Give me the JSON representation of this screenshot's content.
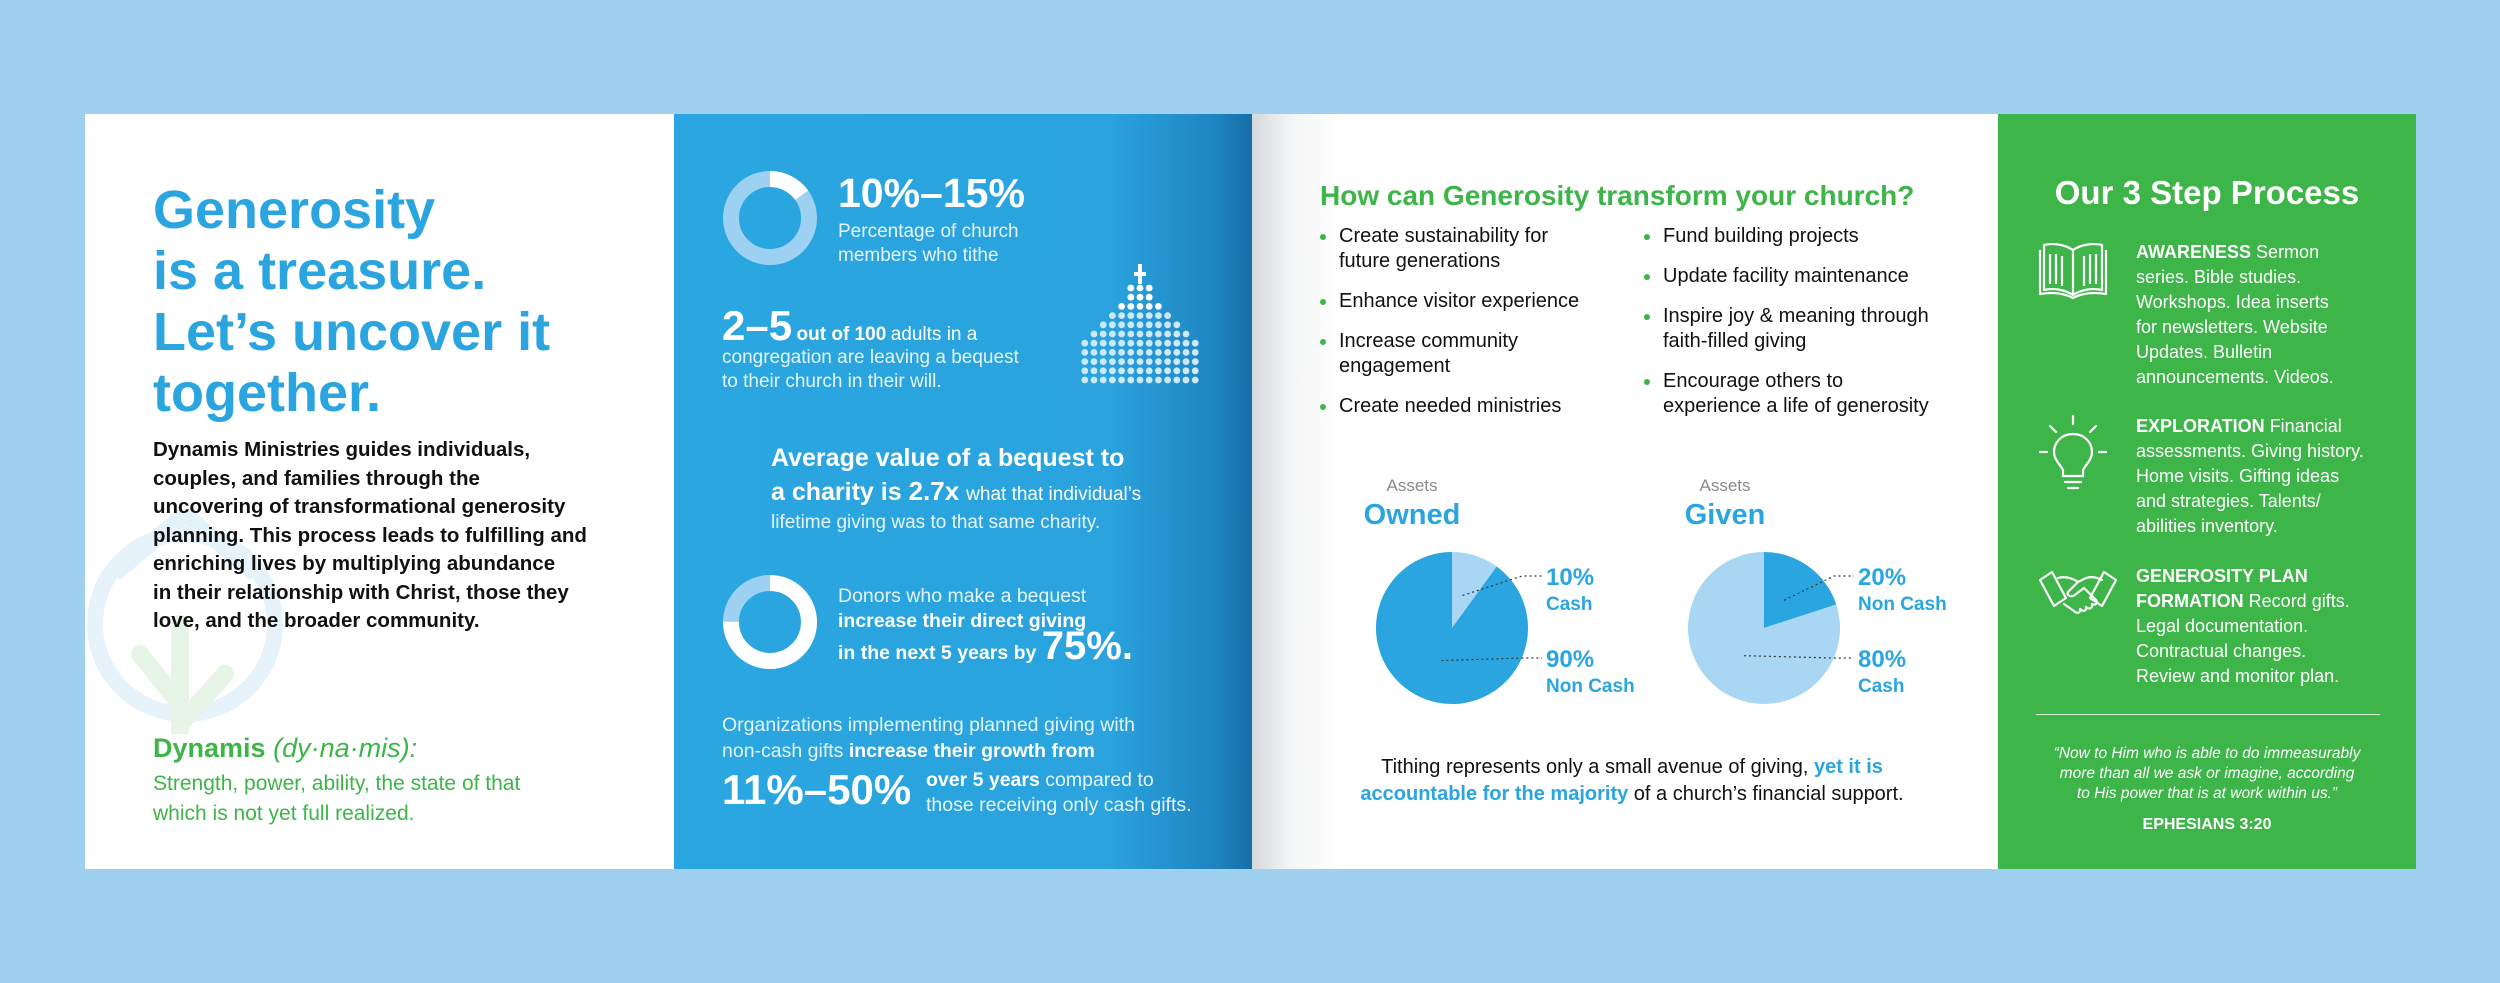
{
  "panel1": {
    "headline": [
      "Generosity",
      "is a treasure.",
      "Let’s uncover it",
      "together."
    ],
    "intro": [
      "Dynamis Ministries guides individuals,",
      "couples, and families through the",
      "uncovering of transformational generosity",
      "planning. This process leads to fulfilling and",
      "enriching lives by multiplying abundance",
      "in their relationship with Christ, those they",
      "love, and the broader community."
    ],
    "dynamis_word": "Dynamis",
    "dynamis_pron": "(dy·na·mis):",
    "dynamis_def": [
      "Strength, power, ability, the state of that",
      "which is not yet full realized."
    ]
  },
  "panel2": {
    "stat1_big": "10%–15%",
    "stat1_desc": [
      "Percentage of church",
      "members who tithe"
    ],
    "stat1_fraction": 0.15,
    "stat2_big": "2–5",
    "stat2_bold": "out of 100",
    "stat2_rest": "adults in a",
    "stat2_lines": [
      "congregation are leaving a bequest",
      "to their church in their will."
    ],
    "stat3_line1": "Average value of a bequest to",
    "stat3_line2a": "a charity is",
    "stat3_big": "2.7x",
    "stat3_line2b": "what that individual’s",
    "stat3_line3": "lifetime giving was to that same charity.",
    "stat4_line1": "Donors who make a bequest",
    "stat4_line2": "increase their direct giving",
    "stat4_line3": "in the next 5 years by",
    "stat4_big": "75%.",
    "stat4_fraction": 0.75,
    "stat5_line1": "Organizations implementing planned giving with",
    "stat5_line2a": "non-cash gifts",
    "stat5_line2b": "increase their growth from",
    "stat5_big": "11%–50%",
    "stat5_bold": "over 5 years",
    "stat5_rest": "compared to",
    "stat5_line4": "those receiving only cash gifts."
  },
  "panel3": {
    "title": "How can Generosity transform your church?",
    "left_list": [
      [
        "Create sustainability for",
        "future generations"
      ],
      [
        "Enhance visitor experience"
      ],
      [
        "Increase community",
        "engagement"
      ],
      [
        "Create needed ministries"
      ]
    ],
    "right_list": [
      [
        "Fund building projects"
      ],
      [
        "Update facility maintenance"
      ],
      [
        "Inspire joy & meaning through",
        "faith-filled giving"
      ],
      [
        "Encourage others to",
        "experience a life of generosity"
      ]
    ],
    "footer_a": "Tithing represents only a small avenue of giving,",
    "footer_blue1": "yet it is",
    "footer_blue2": "accountable for the majority",
    "footer_b": "of a church’s financial support."
  },
  "chart_data": [
    {
      "type": "pie",
      "title": "Assets Owned",
      "subtitle": "Assets",
      "main_title": "Owned",
      "labels": [
        "Cash",
        "Non Cash"
      ],
      "values": [
        10,
        90
      ],
      "pct_labels": [
        "10%",
        "90%"
      ],
      "colors": [
        "#a8d6f3",
        "#2aa5df"
      ]
    },
    {
      "type": "pie",
      "title": "Assets Given",
      "subtitle": "Assets",
      "main_title": "Given",
      "labels": [
        "Non Cash",
        "Cash"
      ],
      "values": [
        20,
        80
      ],
      "pct_labels": [
        "20%",
        "80%"
      ],
      "colors": [
        "#2aa5df",
        "#a8d6f3"
      ]
    }
  ],
  "panel4": {
    "title": "Our 3 Step Process",
    "steps": [
      {
        "icon": "open-book-icon",
        "name": "AWARENESS",
        "first": "Sermon",
        "lines": [
          "series. Bible studies.",
          "Workshops. Idea inserts",
          "for newsletters. Website",
          "Updates. Bulletin",
          "announcements. Videos."
        ]
      },
      {
        "icon": "lightbulb-icon",
        "name": "EXPLORATION",
        "first": "Financial",
        "lines": [
          "assessments. Giving history.",
          "Home visits. Gifting ideas",
          "and strategies. Talents/",
          "abilities inventory."
        ]
      },
      {
        "icon": "handshake-icon",
        "name": "GENEROSITY PLAN",
        "name2": "FORMATION",
        "first": "Record gifts.",
        "lines": [
          "Legal documentation.",
          "Contractual changes.",
          "Review and monitor plan."
        ]
      }
    ],
    "quote": [
      "“Now to Him who is able to do immeasurably",
      "more than all we ask or imagine, according",
      "to His power that is at work within us.”"
    ],
    "reference": "EPHESIANS 3:20"
  },
  "colors": {
    "background": "#9fd0ef",
    "blue": "#2aa5df",
    "light_blue": "#a8d6f3",
    "green": "#3db549"
  }
}
